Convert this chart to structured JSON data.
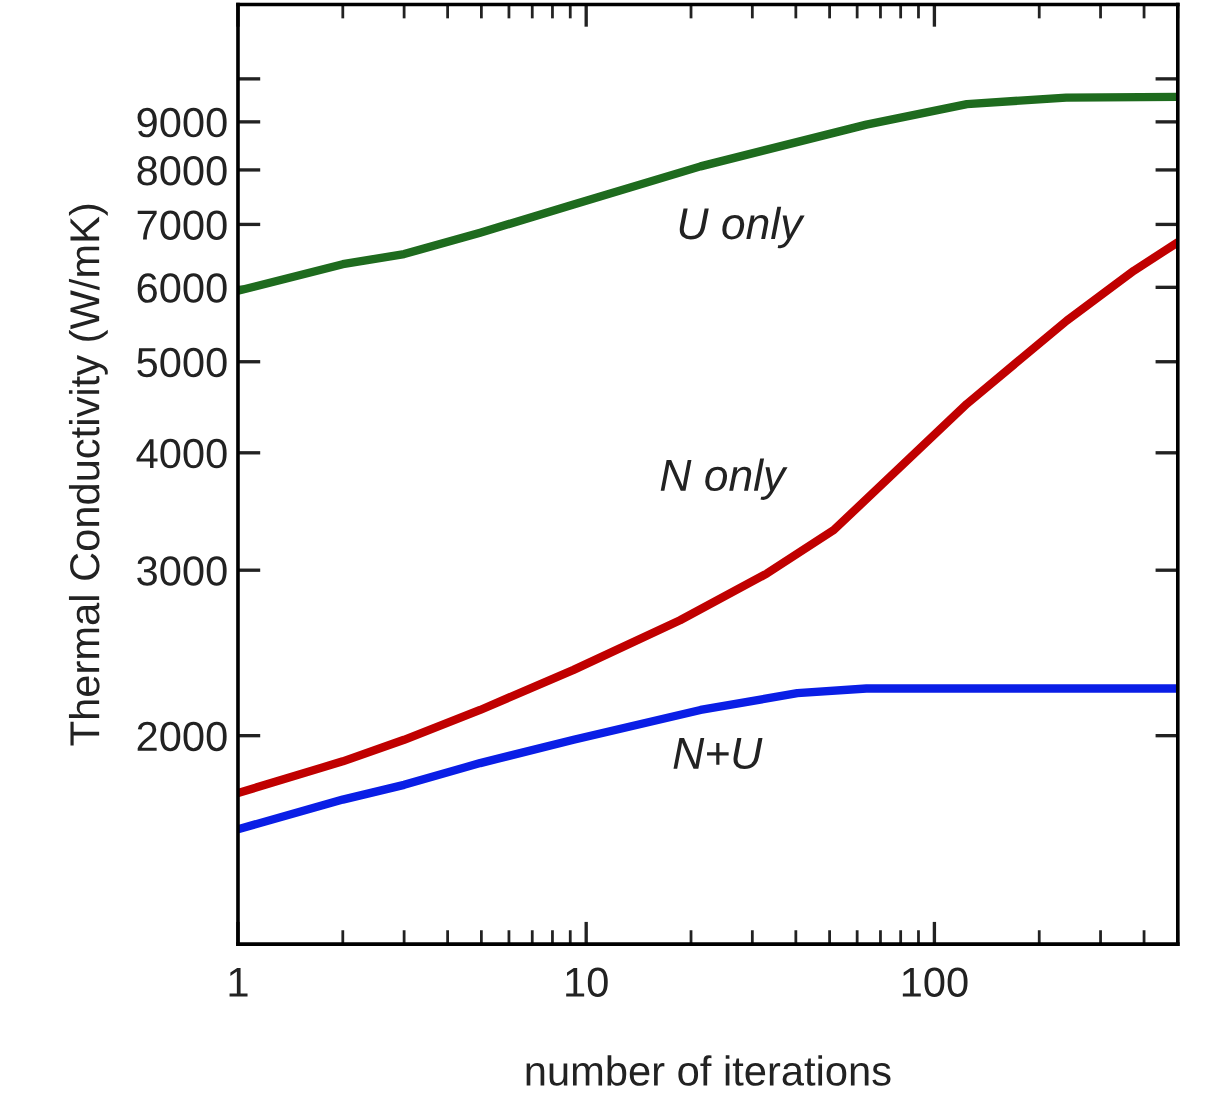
{
  "chart_data": {
    "type": "line",
    "xlabel": "number of iterations",
    "ylabel": "Thermal Conductivity (W/mK)",
    "log": "xy",
    "grid": false,
    "legend": false,
    "marker": "none",
    "line_style": "solid",
    "xlim": [
      1,
      500
    ],
    "xticks": [
      1,
      10,
      100
    ],
    "ylim": [
      1200,
      12000
    ],
    "yticks": [
      2000,
      3000,
      4000,
      5000,
      6000,
      7000,
      8000,
      9000,
      {
        "value": 10000,
        "label": null
      }
    ],
    "series": [
      {
        "name": "U only",
        "color": "#1e6b1e",
        "x": [
          1,
          2,
          3,
          4.96,
          9.2,
          21.3,
          63.8,
          124,
          239,
          500
        ],
        "values": [
          5950,
          6350,
          6510,
          6860,
          7350,
          8070,
          8940,
          9400,
          9550,
          9570
        ]
      },
      {
        "name": "N only",
        "color": "#c00000",
        "x": [
          1,
          2,
          3,
          4.96,
          9.2,
          18.6,
          33,
          51.4,
          79.8,
          124,
          240,
          374,
          500
        ],
        "values": [
          1738,
          1878,
          1980,
          2130,
          2350,
          2654,
          2975,
          3310,
          3864,
          4510,
          5530,
          6250,
          6700
        ]
      },
      {
        "name": "N+U",
        "color": "#0a1ee6",
        "x": [
          1,
          2,
          3,
          4.96,
          9.2,
          21.3,
          40.4,
          63.8,
          500
        ],
        "values": [
          1590,
          1710,
          1773,
          1870,
          1980,
          2130,
          2220,
          2245,
          2245
        ]
      }
    ]
  }
}
